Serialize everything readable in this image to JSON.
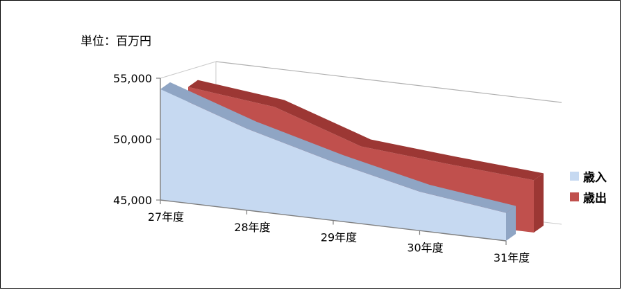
{
  "chart_data": {
    "type": "area",
    "unit_label": "単位：百万円",
    "categories": [
      "27年度",
      "28年度",
      "29年度",
      "30年度",
      "31年度"
    ],
    "series": [
      {
        "name": "歳入",
        "values": [
          54100,
          51700,
          49800,
          48200,
          47300
        ],
        "color": "#c6d9f1"
      },
      {
        "name": "歳出",
        "values": [
          53600,
          52800,
          50400,
          49800,
          49300
        ],
        "color": "#c0504d"
      }
    ],
    "y_ticks": [
      "55,000",
      "50,000",
      "45,000"
    ],
    "ylim": [
      45000,
      55000
    ],
    "view": "3d",
    "legend_position": "right",
    "grid": false
  }
}
